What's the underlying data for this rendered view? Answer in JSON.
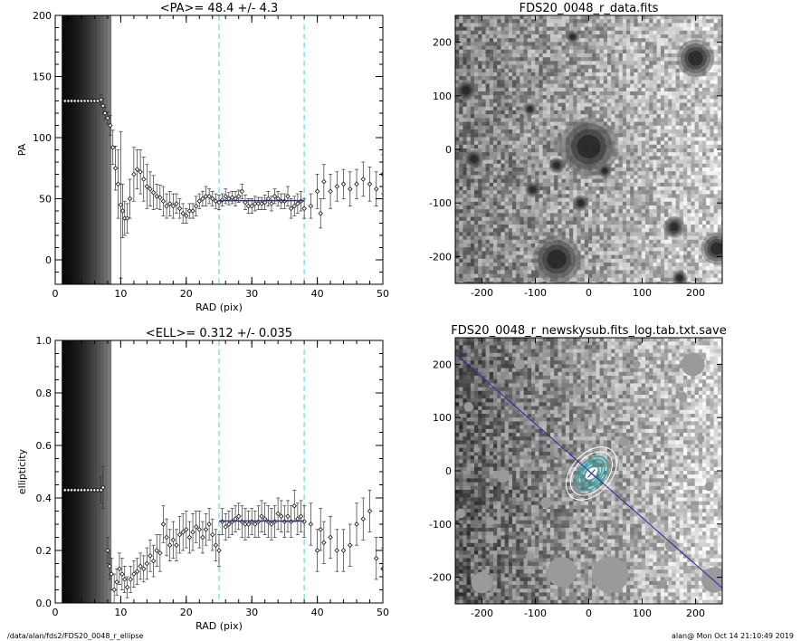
{
  "footer": {
    "left": "/data/alan/fds2/FDS20_0048_r_ellipse",
    "right": "alan@  Mon Oct 14 21:10:49 2019"
  },
  "colors": {
    "fit_line": "#2a2aa8",
    "dashed_marker": "#66dddd",
    "contour": "#22aaaa"
  },
  "chart_data": [
    {
      "type": "scatter",
      "title": "<PA>=  48.4 +/-   4.3",
      "xlabel": "RAD (pix)",
      "ylabel": "PA",
      "xlim": [
        0,
        50
      ],
      "ylim": [
        -20,
        200
      ],
      "xticks": [
        "0",
        "10",
        "20",
        "30",
        "40",
        "50"
      ],
      "yticks": [
        "0",
        "50",
        "100",
        "150",
        "200"
      ],
      "vlines": [
        25,
        38
      ],
      "fit": {
        "x0": 25,
        "x1": 38,
        "y": 48.4
      },
      "shaded_band": [
        1,
        8.5
      ],
      "points": [
        [
          1.5,
          130,
          0
        ],
        [
          2,
          130,
          0
        ],
        [
          2.5,
          130,
          0
        ],
        [
          3,
          130,
          0
        ],
        [
          3.5,
          130,
          0
        ],
        [
          4,
          130,
          0
        ],
        [
          4.5,
          130,
          0
        ],
        [
          5,
          130,
          0
        ],
        [
          5.5,
          130,
          0
        ],
        [
          6,
          130,
          0
        ],
        [
          6.5,
          130,
          0
        ],
        [
          7,
          131,
          4
        ],
        [
          7.3,
          126,
          6
        ],
        [
          7.6,
          120,
          5
        ],
        [
          8,
          116,
          5
        ],
        [
          8.4,
          110,
          8
        ],
        [
          8.8,
          92,
          14
        ],
        [
          9.2,
          75,
          18
        ],
        [
          9.6,
          62,
          28
        ],
        [
          10,
          45,
          60
        ],
        [
          10.3,
          40,
          22
        ],
        [
          10.6,
          34,
          14
        ],
        [
          11,
          34,
          12
        ],
        [
          11.4,
          50,
          16
        ],
        [
          12,
          70,
          22
        ],
        [
          12.5,
          74,
          16
        ],
        [
          13,
          72,
          18
        ],
        [
          13.5,
          66,
          18
        ],
        [
          14,
          60,
          18
        ],
        [
          14.5,
          58,
          14
        ],
        [
          15,
          55,
          14
        ],
        [
          15.5,
          52,
          10
        ],
        [
          16,
          51,
          10
        ],
        [
          16.5,
          48,
          12
        ],
        [
          17,
          44,
          10
        ],
        [
          17.5,
          46,
          10
        ],
        [
          18,
          44,
          10
        ],
        [
          18.5,
          46,
          8
        ],
        [
          19,
          42,
          8
        ],
        [
          19.5,
          38,
          8
        ],
        [
          20,
          36,
          6
        ],
        [
          20.5,
          40,
          6
        ],
        [
          21,
          40,
          6
        ],
        [
          21.5,
          44,
          8
        ],
        [
          22,
          48,
          6
        ],
        [
          22.5,
          50,
          6
        ],
        [
          23,
          52,
          8
        ],
        [
          23.5,
          52,
          6
        ],
        [
          24,
          50,
          6
        ],
        [
          24.5,
          48,
          6
        ],
        [
          25,
          47,
          6
        ],
        [
          25.5,
          49,
          5
        ],
        [
          26,
          52,
          6
        ],
        [
          26.5,
          50,
          5
        ],
        [
          27,
          51,
          5
        ],
        [
          27.5,
          50,
          6
        ],
        [
          28,
          52,
          5
        ],
        [
          28.5,
          56,
          6
        ],
        [
          29,
          47,
          6
        ],
        [
          29.5,
          44,
          6
        ],
        [
          30,
          44,
          6
        ],
        [
          30.5,
          46,
          6
        ],
        [
          31,
          46,
          5
        ],
        [
          31.5,
          46,
          5
        ],
        [
          32,
          47,
          6
        ],
        [
          32.5,
          50,
          6
        ],
        [
          33,
          46,
          6
        ],
        [
          33.5,
          52,
          6
        ],
        [
          34,
          50,
          6
        ],
        [
          34.5,
          48,
          6
        ],
        [
          35,
          48,
          6
        ],
        [
          35.5,
          52,
          8
        ],
        [
          36,
          42,
          8
        ],
        [
          36.5,
          44,
          8
        ],
        [
          37,
          46,
          8
        ],
        [
          37.5,
          48,
          8
        ],
        [
          38,
          42,
          8
        ],
        [
          39,
          44,
          10
        ],
        [
          40,
          56,
          14
        ],
        [
          40.5,
          38,
          12
        ],
        [
          41,
          64,
          14
        ],
        [
          42,
          56,
          14
        ],
        [
          43,
          60,
          12
        ],
        [
          44,
          62,
          12
        ],
        [
          45,
          58,
          14
        ],
        [
          46,
          62,
          12
        ],
        [
          47,
          66,
          14
        ],
        [
          48,
          62,
          14
        ],
        [
          49,
          58,
          14
        ],
        [
          50,
          70,
          16
        ]
      ]
    },
    {
      "type": "image",
      "title": "FDS20_0048_r_data.fits",
      "xlim": [
        -250,
        250
      ],
      "ylim": [
        -250,
        250
      ],
      "xticks": [
        "-200",
        "-100",
        "0",
        "100",
        "200"
      ],
      "yticks": [
        "-200",
        "-100",
        "0",
        "100",
        "200"
      ]
    },
    {
      "type": "scatter",
      "title": "<ELL>= 0.312 +/-  0.035",
      "xlabel": "RAD (pix)",
      "ylabel": "ellipticity",
      "xlim": [
        0,
        50
      ],
      "ylim": [
        0,
        1
      ],
      "xticks": [
        "0",
        "10",
        "20",
        "30",
        "40",
        "50"
      ],
      "yticks": [
        "0.0",
        "0.2",
        "0.4",
        "0.6",
        "0.8",
        "1.0"
      ],
      "vlines": [
        25,
        38
      ],
      "fit": {
        "x0": 25,
        "x1": 38,
        "y": 0.312
      },
      "shaded_band": [
        1,
        8.5
      ],
      "points": [
        [
          1.5,
          0.43,
          0
        ],
        [
          2,
          0.43,
          0
        ],
        [
          2.5,
          0.43,
          0
        ],
        [
          3,
          0.43,
          0
        ],
        [
          3.5,
          0.43,
          0
        ],
        [
          4,
          0.43,
          0
        ],
        [
          4.5,
          0.43,
          0
        ],
        [
          5,
          0.43,
          0
        ],
        [
          5.5,
          0.43,
          0
        ],
        [
          6,
          0.43,
          0
        ],
        [
          6.5,
          0.43,
          0
        ],
        [
          7,
          0.43,
          0.05
        ],
        [
          7.3,
          0.44,
          0.08
        ],
        [
          8,
          0.2,
          0.05
        ],
        [
          8.3,
          0.14,
          0.05
        ],
        [
          8.6,
          0.11,
          0.06
        ],
        [
          9,
          0.05,
          0.06
        ],
        [
          9.4,
          0.08,
          0.05
        ],
        [
          9.8,
          0.13,
          0.06
        ],
        [
          10.2,
          0.11,
          0.06
        ],
        [
          10.6,
          0.09,
          0.05
        ],
        [
          11,
          0.06,
          0.04
        ],
        [
          11.5,
          0.09,
          0.05
        ],
        [
          12,
          0.11,
          0.05
        ],
        [
          12.5,
          0.12,
          0.05
        ],
        [
          13,
          0.14,
          0.05
        ],
        [
          13.5,
          0.13,
          0.05
        ],
        [
          14,
          0.15,
          0.06
        ],
        [
          14.5,
          0.18,
          0.06
        ],
        [
          15,
          0.16,
          0.06
        ],
        [
          15.5,
          0.2,
          0.06
        ],
        [
          16,
          0.19,
          0.07
        ],
        [
          16.5,
          0.3,
          0.07
        ],
        [
          17,
          0.25,
          0.07
        ],
        [
          17.5,
          0.22,
          0.06
        ],
        [
          18,
          0.24,
          0.07
        ],
        [
          18.5,
          0.22,
          0.06
        ],
        [
          19,
          0.26,
          0.07
        ],
        [
          19.5,
          0.27,
          0.07
        ],
        [
          20,
          0.28,
          0.07
        ],
        [
          20.5,
          0.25,
          0.06
        ],
        [
          21,
          0.27,
          0.07
        ],
        [
          21.5,
          0.29,
          0.06
        ],
        [
          22,
          0.28,
          0.07
        ],
        [
          22.5,
          0.25,
          0.06
        ],
        [
          23,
          0.28,
          0.06
        ],
        [
          23.5,
          0.3,
          0.06
        ],
        [
          24,
          0.26,
          0.06
        ],
        [
          24.5,
          0.22,
          0.06
        ],
        [
          25,
          0.2,
          0.06
        ],
        [
          25.5,
          0.31,
          0.05
        ],
        [
          26,
          0.29,
          0.05
        ],
        [
          26.5,
          0.3,
          0.05
        ],
        [
          27,
          0.31,
          0.05
        ],
        [
          27.5,
          0.32,
          0.05
        ],
        [
          28,
          0.33,
          0.05
        ],
        [
          28.5,
          0.31,
          0.06
        ],
        [
          29,
          0.3,
          0.06
        ],
        [
          29.5,
          0.3,
          0.05
        ],
        [
          30,
          0.31,
          0.05
        ],
        [
          30.5,
          0.3,
          0.05
        ],
        [
          31,
          0.31,
          0.06
        ],
        [
          31.5,
          0.33,
          0.06
        ],
        [
          32,
          0.32,
          0.06
        ],
        [
          32.5,
          0.31,
          0.06
        ],
        [
          33,
          0.3,
          0.06
        ],
        [
          33.5,
          0.31,
          0.06
        ],
        [
          34,
          0.34,
          0.06
        ],
        [
          34.5,
          0.33,
          0.06
        ],
        [
          35,
          0.31,
          0.06
        ],
        [
          35.5,
          0.33,
          0.06
        ],
        [
          36,
          0.31,
          0.06
        ],
        [
          36.5,
          0.37,
          0.06
        ],
        [
          37,
          0.32,
          0.06
        ],
        [
          37.5,
          0.33,
          0.06
        ],
        [
          38,
          0.31,
          0.06
        ],
        [
          39,
          0.3,
          0.08
        ],
        [
          40,
          0.2,
          0.08
        ],
        [
          40.5,
          0.28,
          0.08
        ],
        [
          41,
          0.23,
          0.08
        ],
        [
          42,
          0.25,
          0.08
        ],
        [
          43,
          0.2,
          0.08
        ],
        [
          44,
          0.2,
          0.08
        ],
        [
          45,
          0.22,
          0.08
        ],
        [
          46,
          0.3,
          0.08
        ],
        [
          47,
          0.32,
          0.08
        ],
        [
          48,
          0.35,
          0.08
        ],
        [
          49,
          0.17,
          0.08
        ],
        [
          50,
          0.13,
          0.08
        ]
      ]
    },
    {
      "type": "image",
      "title": "FDS20_0048_r_newskysub.fits_log.tab.txt.save",
      "xlim": [
        -250,
        250
      ],
      "ylim": [
        -250,
        250
      ],
      "xticks": [
        "-200",
        "-100",
        "0",
        "100",
        "200"
      ],
      "yticks": [
        "-200",
        "-100",
        "0",
        "100",
        "200"
      ]
    }
  ]
}
